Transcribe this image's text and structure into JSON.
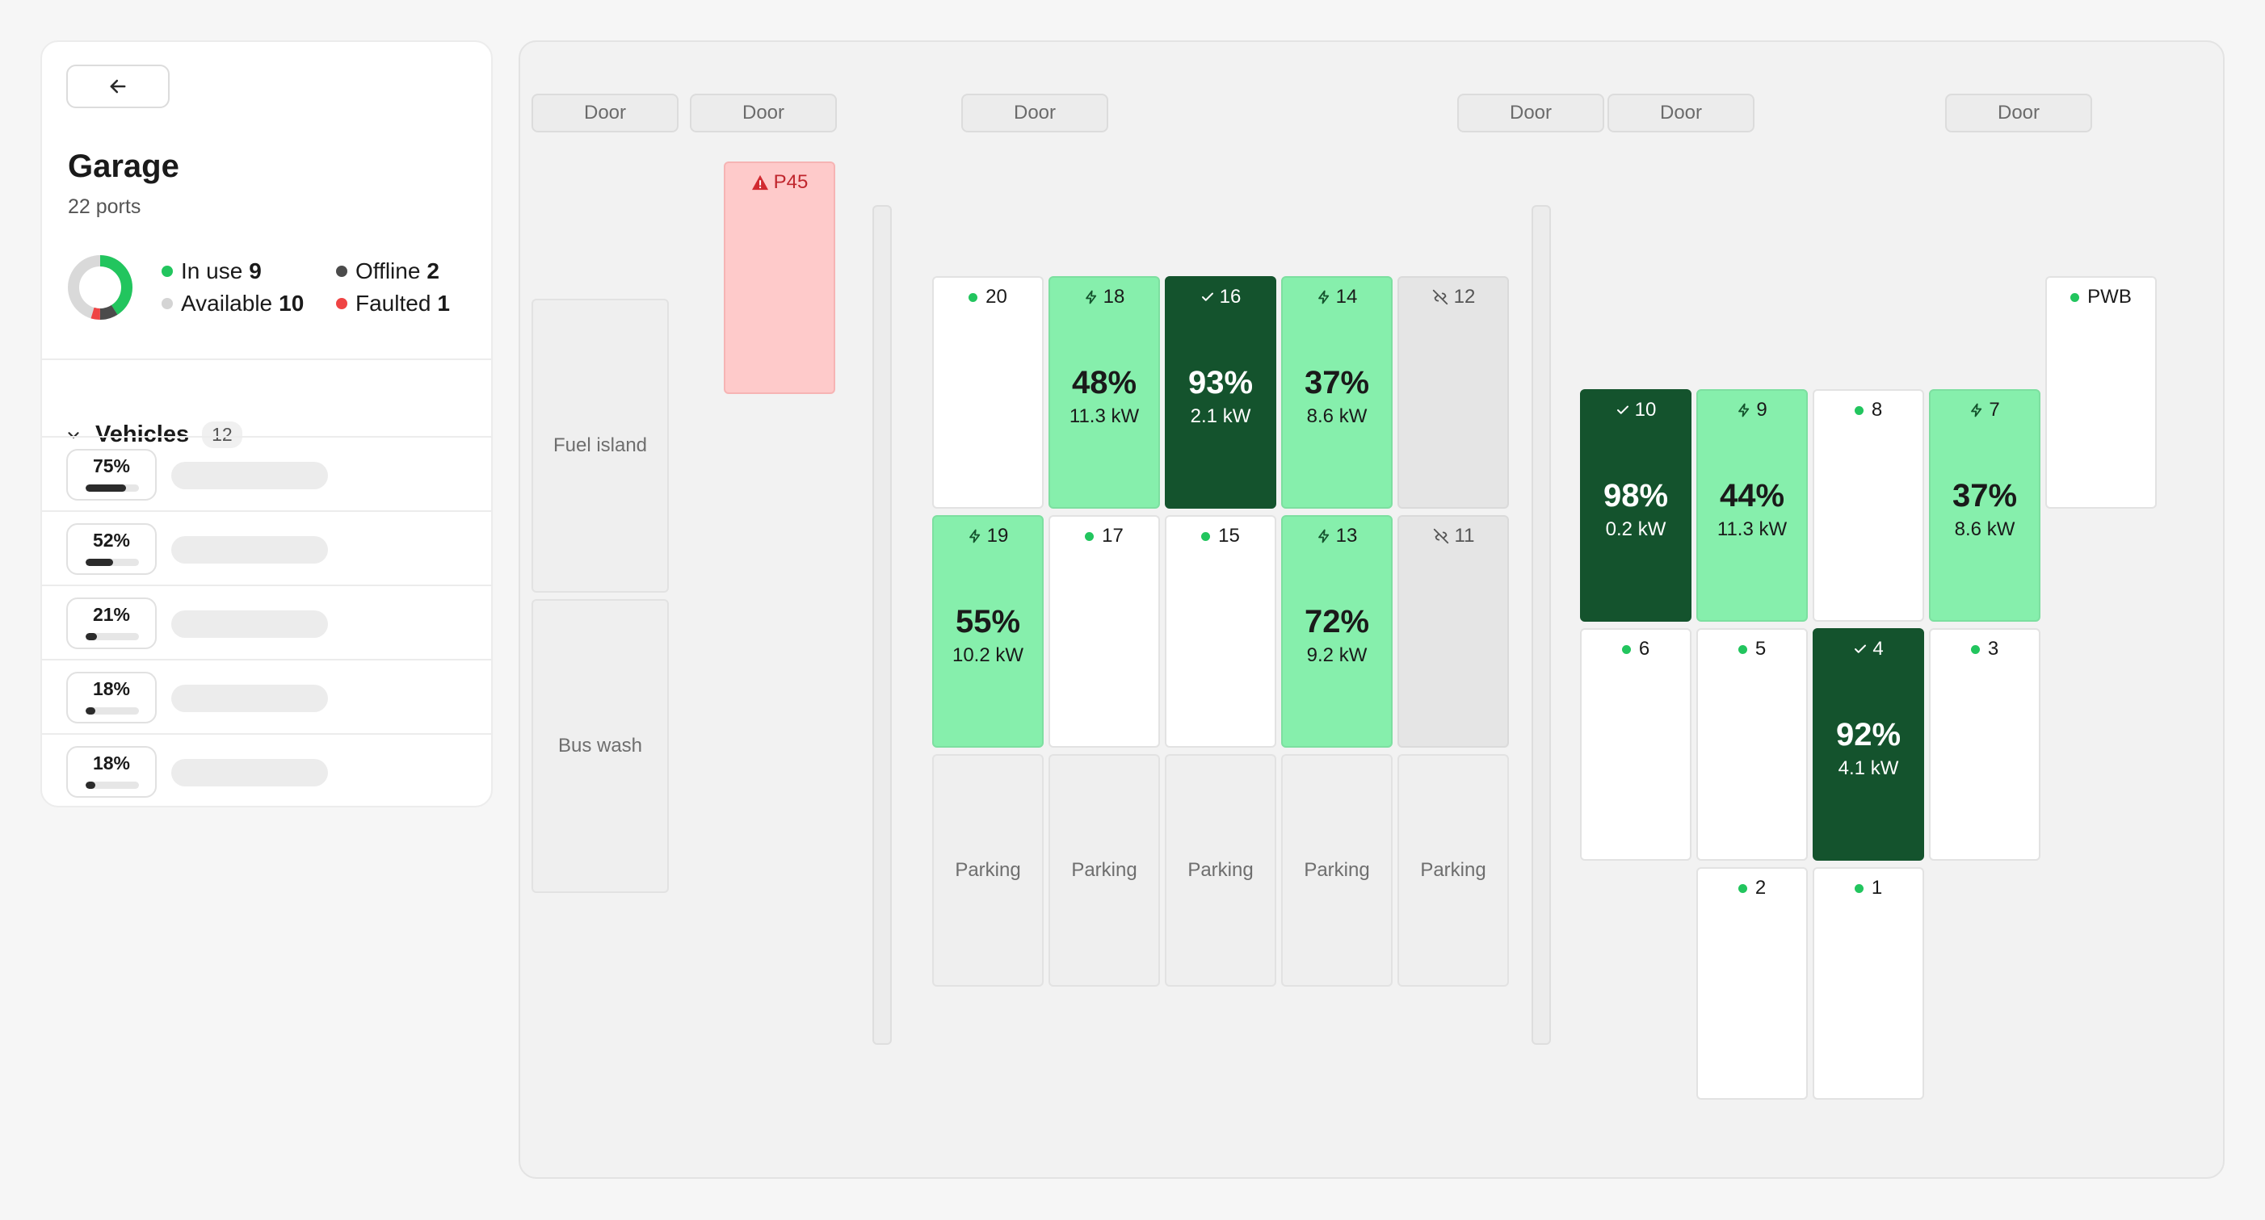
{
  "panel": {
    "title": "Garage",
    "subtitle": "22 ports",
    "legend": [
      {
        "label": "In use",
        "count": "9",
        "color": "#22c55e"
      },
      {
        "label": "Offline",
        "count": "2",
        "color": "#4b4b4b"
      },
      {
        "label": "Available",
        "count": "10",
        "color": "#d4d4d4"
      },
      {
        "label": "Faulted",
        "count": "1",
        "color": "#ef4444"
      }
    ],
    "vehicles_label": "Vehicles",
    "vehicles_count": "12",
    "vehicles": [
      {
        "pct": "75%",
        "fill": 0.75
      },
      {
        "pct": "52%",
        "fill": 0.52
      },
      {
        "pct": "21%",
        "fill": 0.21
      },
      {
        "pct": "18%",
        "fill": 0.18
      },
      {
        "pct": "18%",
        "fill": 0.18
      }
    ]
  },
  "map": {
    "door_label": "Door",
    "areas": {
      "fuel_island": "Fuel island",
      "bus_wash": "Bus wash",
      "parking": "Parking"
    },
    "stalls": {
      "p45": {
        "label": "P45",
        "status": "faulted"
      },
      "s20": {
        "label": "20",
        "status": "available"
      },
      "s18": {
        "label": "18",
        "status": "charging",
        "pct": "48%",
        "kw": "11.3 kW"
      },
      "s16": {
        "label": "16",
        "status": "done",
        "pct": "93%",
        "kw": "2.1 kW"
      },
      "s14": {
        "label": "14",
        "status": "charging",
        "pct": "37%",
        "kw": "8.6 kW"
      },
      "s12": {
        "label": "12",
        "status": "offline"
      },
      "s19": {
        "label": "19",
        "status": "charging",
        "pct": "55%",
        "kw": "10.2 kW"
      },
      "s17": {
        "label": "17",
        "status": "available"
      },
      "s15": {
        "label": "15",
        "status": "available"
      },
      "s13": {
        "label": "13",
        "status": "charging",
        "pct": "72%",
        "kw": "9.2 kW"
      },
      "s11": {
        "label": "11",
        "status": "offline"
      },
      "s10": {
        "label": "10",
        "status": "done",
        "pct": "98%",
        "kw": "0.2 kW"
      },
      "s9": {
        "label": "9",
        "status": "charging",
        "pct": "44%",
        "kw": "11.3 kW"
      },
      "s8": {
        "label": "8",
        "status": "available"
      },
      "s7": {
        "label": "7",
        "status": "charging",
        "pct": "37%",
        "kw": "8.6 kW"
      },
      "pwb": {
        "label": "PWB",
        "status": "available"
      },
      "s6": {
        "label": "6",
        "status": "available"
      },
      "s5": {
        "label": "5",
        "status": "available"
      },
      "s4": {
        "label": "4",
        "status": "done",
        "pct": "92%",
        "kw": "4.1 kW"
      },
      "s3": {
        "label": "3",
        "status": "available"
      },
      "s2": {
        "label": "2",
        "status": "available"
      },
      "s1": {
        "label": "1",
        "status": "available"
      }
    }
  }
}
